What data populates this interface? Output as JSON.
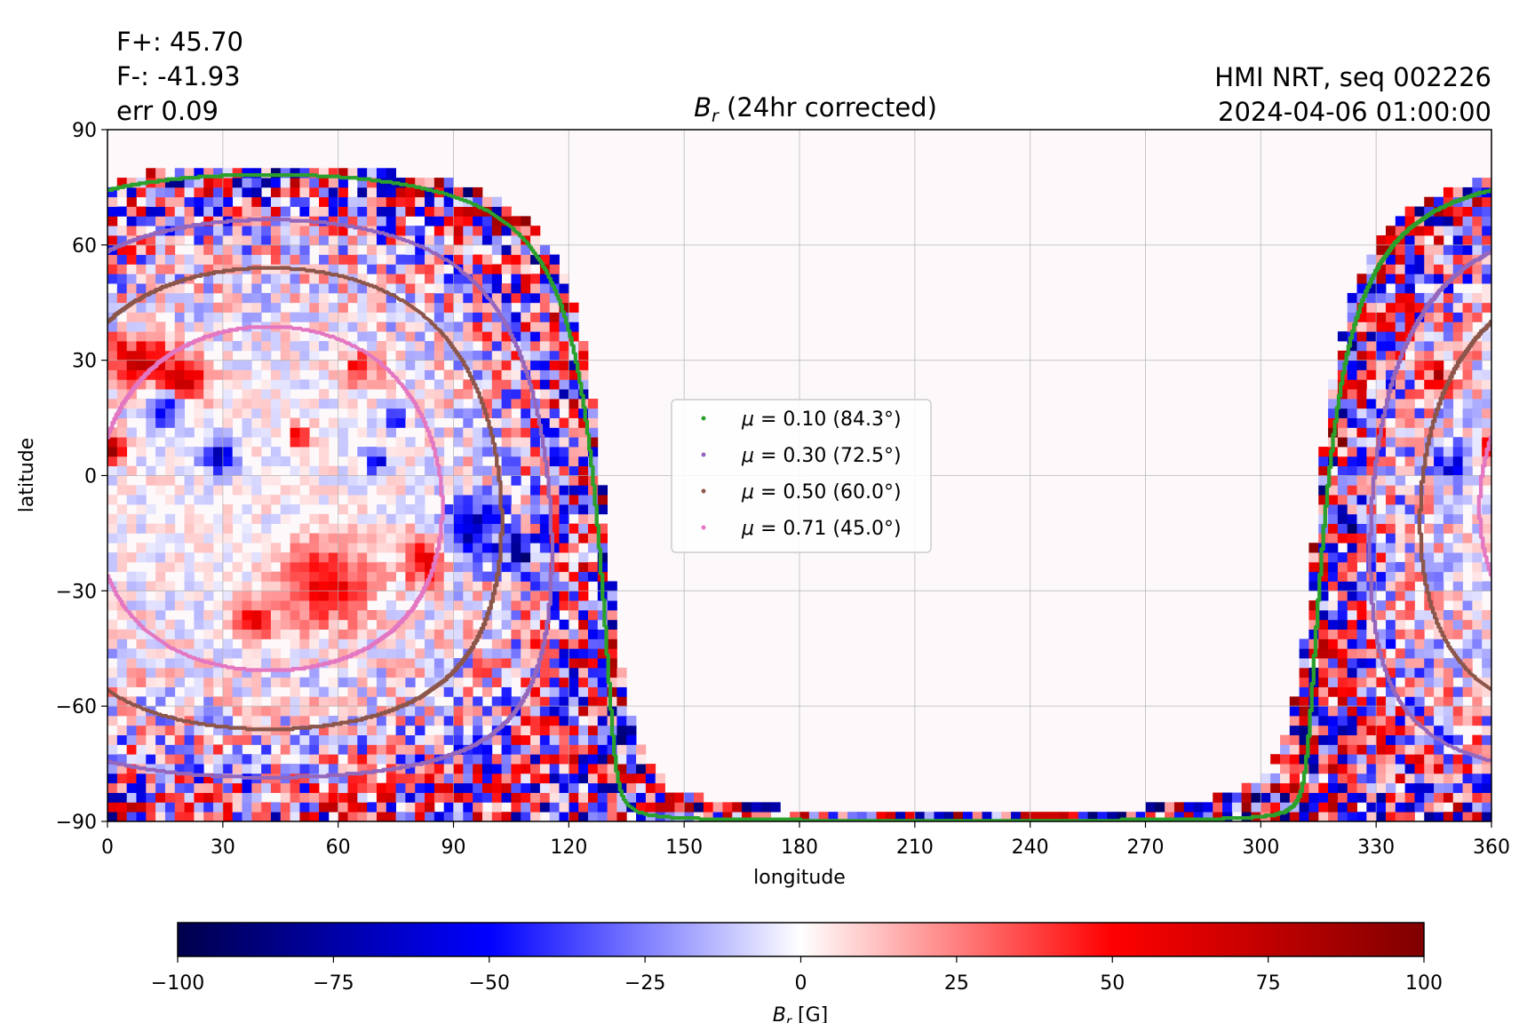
{
  "header": {
    "stats": [
      "F+: 45.70",
      "F-: -41.93",
      "err 0.09"
    ],
    "title_main": "B",
    "title_sub": "r",
    "title_rest": " (24hr corrected)",
    "source": "HMI NRT, seq 002226",
    "timestamp": "2024-04-06 01:00:00"
  },
  "chart_data": {
    "type": "heatmap",
    "xlabel": "longitude",
    "ylabel": "latitude",
    "xlim": [
      0,
      360
    ],
    "ylim": [
      -90,
      90
    ],
    "xticks": [
      0,
      30,
      60,
      90,
      120,
      150,
      180,
      210,
      240,
      270,
      300,
      330,
      360
    ],
    "yticks": [
      -90,
      -60,
      -30,
      0,
      30,
      60,
      90
    ],
    "xtick_labels": [
      "0",
      "30",
      "60",
      "90",
      "120",
      "150",
      "180",
      "210",
      "240",
      "270",
      "300",
      "330",
      "360"
    ],
    "ytick_labels": [
      "−90",
      "−60",
      "−30",
      "0",
      "30",
      "60",
      "90"
    ],
    "grid": true,
    "colormap": "seismic",
    "colorbar": {
      "label_main": "B",
      "label_sub": "r",
      "label_unit": " [G]",
      "range": [
        -100,
        100
      ],
      "ticks": [
        -100,
        -75,
        -50,
        -25,
        0,
        25,
        50,
        75,
        100
      ],
      "tick_labels": [
        "−100",
        "−75",
        "−50",
        "−25",
        "0",
        "25",
        "50",
        "75",
        "100"
      ]
    },
    "disk_center": {
      "lon": 42,
      "lat": -6
    },
    "legend": {
      "placement": "center",
      "entries": [
        {
          "prefix": "μ = ",
          "value": "0.10",
          "angle": "(84.3°)",
          "mu": 0.1,
          "color": "#2ca02c"
        },
        {
          "prefix": "μ = ",
          "value": "0.30",
          "angle": "(72.5°)",
          "mu": 0.3,
          "color": "#9467bd"
        },
        {
          "prefix": "μ = ",
          "value": "0.50",
          "angle": "(60.0°)",
          "mu": 0.5,
          "color": "#8c564b"
        },
        {
          "prefix": "μ = ",
          "value": "0.71",
          "angle": "(45.0°)",
          "mu": 0.71,
          "color": "#e377c2"
        }
      ]
    }
  }
}
